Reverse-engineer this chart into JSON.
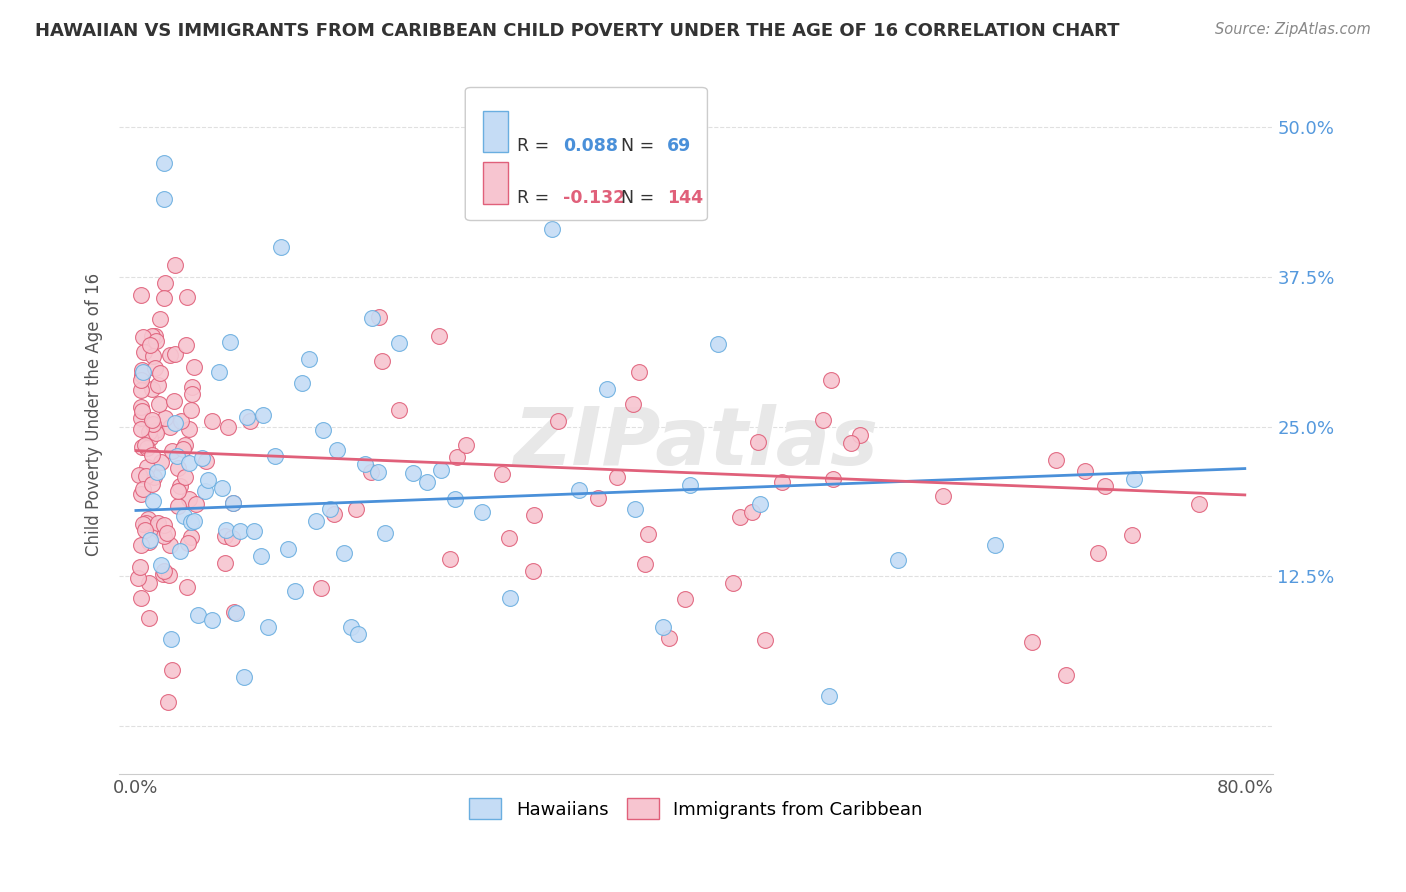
{
  "title": "HAWAIIAN VS IMMIGRANTS FROM CARIBBEAN CHILD POVERTY UNDER THE AGE OF 16 CORRELATION CHART",
  "source": "Source: ZipAtlas.com",
  "ylabel": "Child Poverty Under the Age of 16",
  "r_hawaiian": 0.088,
  "n_hawaiian": 69,
  "r_caribbean": -0.132,
  "n_caribbean": 144,
  "color_hawaiian_fill": "#c5dcf5",
  "color_hawaiian_edge": "#6aaee0",
  "color_caribbean_fill": "#f7c5d0",
  "color_caribbean_edge": "#e0607a",
  "color_line_hawaiian": "#4a90d9",
  "color_line_caribbean": "#e0607a",
  "background_color": "#ffffff",
  "grid_color": "#e0e0e0",
  "watermark_color": "#e8e8e8",
  "ytick_color": "#5599dd",
  "xtick_color": "#555555",
  "ylabel_color": "#555555",
  "title_color": "#333333",
  "source_color": "#888888",
  "legend_edge_color": "#cccccc",
  "legend_text_color": "#333333",
  "legend_r_color_h": "#4a90d9",
  "legend_r_color_c": "#e0607a",
  "xlim": [
    -0.012,
    0.82
  ],
  "ylim": [
    -0.04,
    0.56
  ],
  "ytick_vals": [
    0.0,
    0.125,
    0.25,
    0.375,
    0.5
  ],
  "ytick_labels": [
    "",
    "12.5%",
    "25.0%",
    "37.5%",
    "50.0%"
  ],
  "xtick_vals": [
    0.0,
    0.1,
    0.2,
    0.3,
    0.4,
    0.5,
    0.6,
    0.7,
    0.8
  ],
  "xtick_labels": [
    "0.0%",
    "",
    "",
    "",
    "",
    "",
    "",
    "",
    "80.0%"
  ]
}
